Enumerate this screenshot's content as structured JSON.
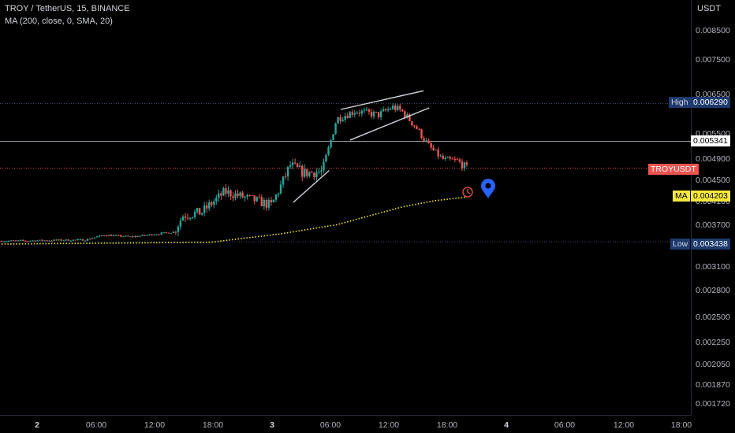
{
  "legend": {
    "symbol": "TROY / TetherUS, 15, BINANCE",
    "indicator": "MA (200, close, 0, SMA, 20)"
  },
  "axis": {
    "unit": "USDT",
    "y_ticks": [
      "0.008500",
      "0.007500",
      "0.006500",
      "0.005500",
      "0.004900",
      "0.004500",
      "0.004100",
      "0.003700",
      "0.003400",
      "0.003100",
      "0.002800",
      "0.002500",
      "0.002250",
      "0.002050",
      "0.001870",
      "0.001720"
    ],
    "x_ticks": [
      {
        "label": "2",
        "bold": true
      },
      {
        "label": "06:00",
        "bold": false
      },
      {
        "label": "12:00",
        "bold": false
      },
      {
        "label": "18:00",
        "bold": false
      },
      {
        "label": "3",
        "bold": true
      },
      {
        "label": "06:00",
        "bold": false
      },
      {
        "label": "12:00",
        "bold": false
      },
      {
        "label": "18:00",
        "bold": false
      },
      {
        "label": "4",
        "bold": true
      },
      {
        "label": "06:00",
        "bold": false
      },
      {
        "label": "12:00",
        "bold": false
      },
      {
        "label": "18:00",
        "bold": false
      }
    ]
  },
  "tags": {
    "high_label": "High",
    "high_value": "0.006290",
    "crosshair_value": "0.005341",
    "symbol_label": "TROYUSDT",
    "ma_label": "MA",
    "ma_value": "0.004203",
    "low_label": "Low",
    "low_value": "0.003438"
  },
  "colors": {
    "up": "#26a69a",
    "down": "#ef5350",
    "ma": "#f5e83b",
    "high_low_tag": "#1e3a6e",
    "symbol_tag": "#ef5350",
    "ma_tag": "#f5e83b",
    "marker": "#2962ff"
  },
  "chart_data": {
    "type": "candlestick",
    "interval": "15",
    "scale": "log",
    "ylim": [
      0.00172,
      0.0095
    ],
    "key_levels": {
      "high": 0.00629,
      "low": 0.003438,
      "crosshair": 0.005341,
      "last": 0.00474,
      "ma": 0.004203
    },
    "anchors": [
      {
        "t": 0,
        "price": 0.00345
      },
      {
        "t": 0.18,
        "price": 0.00347
      },
      {
        "t": 0.22,
        "price": 0.00355
      },
      {
        "t": 0.28,
        "price": 0.00352
      },
      {
        "t": 0.37,
        "price": 0.0036
      },
      {
        "t": 0.39,
        "price": 0.00388
      },
      {
        "t": 0.43,
        "price": 0.00393
      },
      {
        "t": 0.48,
        "price": 0.0043
      },
      {
        "t": 0.58,
        "price": 0.00405
      },
      {
        "t": 0.62,
        "price": 0.0048
      },
      {
        "t": 0.65,
        "price": 0.00465
      },
      {
        "t": 0.69,
        "price": 0.00468
      },
      {
        "t": 0.72,
        "price": 0.0059
      },
      {
        "t": 0.76,
        "price": 0.0061
      },
      {
        "t": 0.81,
        "price": 0.006
      },
      {
        "t": 0.84,
        "price": 0.0062
      },
      {
        "t": 0.86,
        "price": 0.0061
      },
      {
        "t": 0.89,
        "price": 0.0057
      },
      {
        "t": 0.92,
        "price": 0.0052
      },
      {
        "t": 0.95,
        "price": 0.0049
      },
      {
        "t": 0.98,
        "price": 0.00488
      },
      {
        "t": 1.0,
        "price": 0.00474
      }
    ],
    "ma_series": [
      {
        "t": 0,
        "price": 0.0034
      },
      {
        "t": 0.45,
        "price": 0.00343
      },
      {
        "t": 0.6,
        "price": 0.00357
      },
      {
        "t": 0.72,
        "price": 0.00372
      },
      {
        "t": 0.78,
        "price": 0.00385
      },
      {
        "t": 0.86,
        "price": 0.00402
      },
      {
        "t": 0.93,
        "price": 0.00413
      },
      {
        "t": 1.0,
        "price": 0.0042
      }
    ],
    "drawings": [
      {
        "type": "trendline",
        "from": {
          "t": 0.627,
          "price": 0.0041
        },
        "to": {
          "t": 0.704,
          "price": 0.0047
        }
      },
      {
        "type": "trendline",
        "from": {
          "t": 0.729,
          "price": 0.00614
        },
        "to": {
          "t": 0.907,
          "price": 0.00663
        }
      },
      {
        "type": "trendline",
        "from": {
          "t": 0.749,
          "price": 0.00537
        },
        "to": {
          "t": 0.919,
          "price": 0.00618
        }
      }
    ]
  }
}
